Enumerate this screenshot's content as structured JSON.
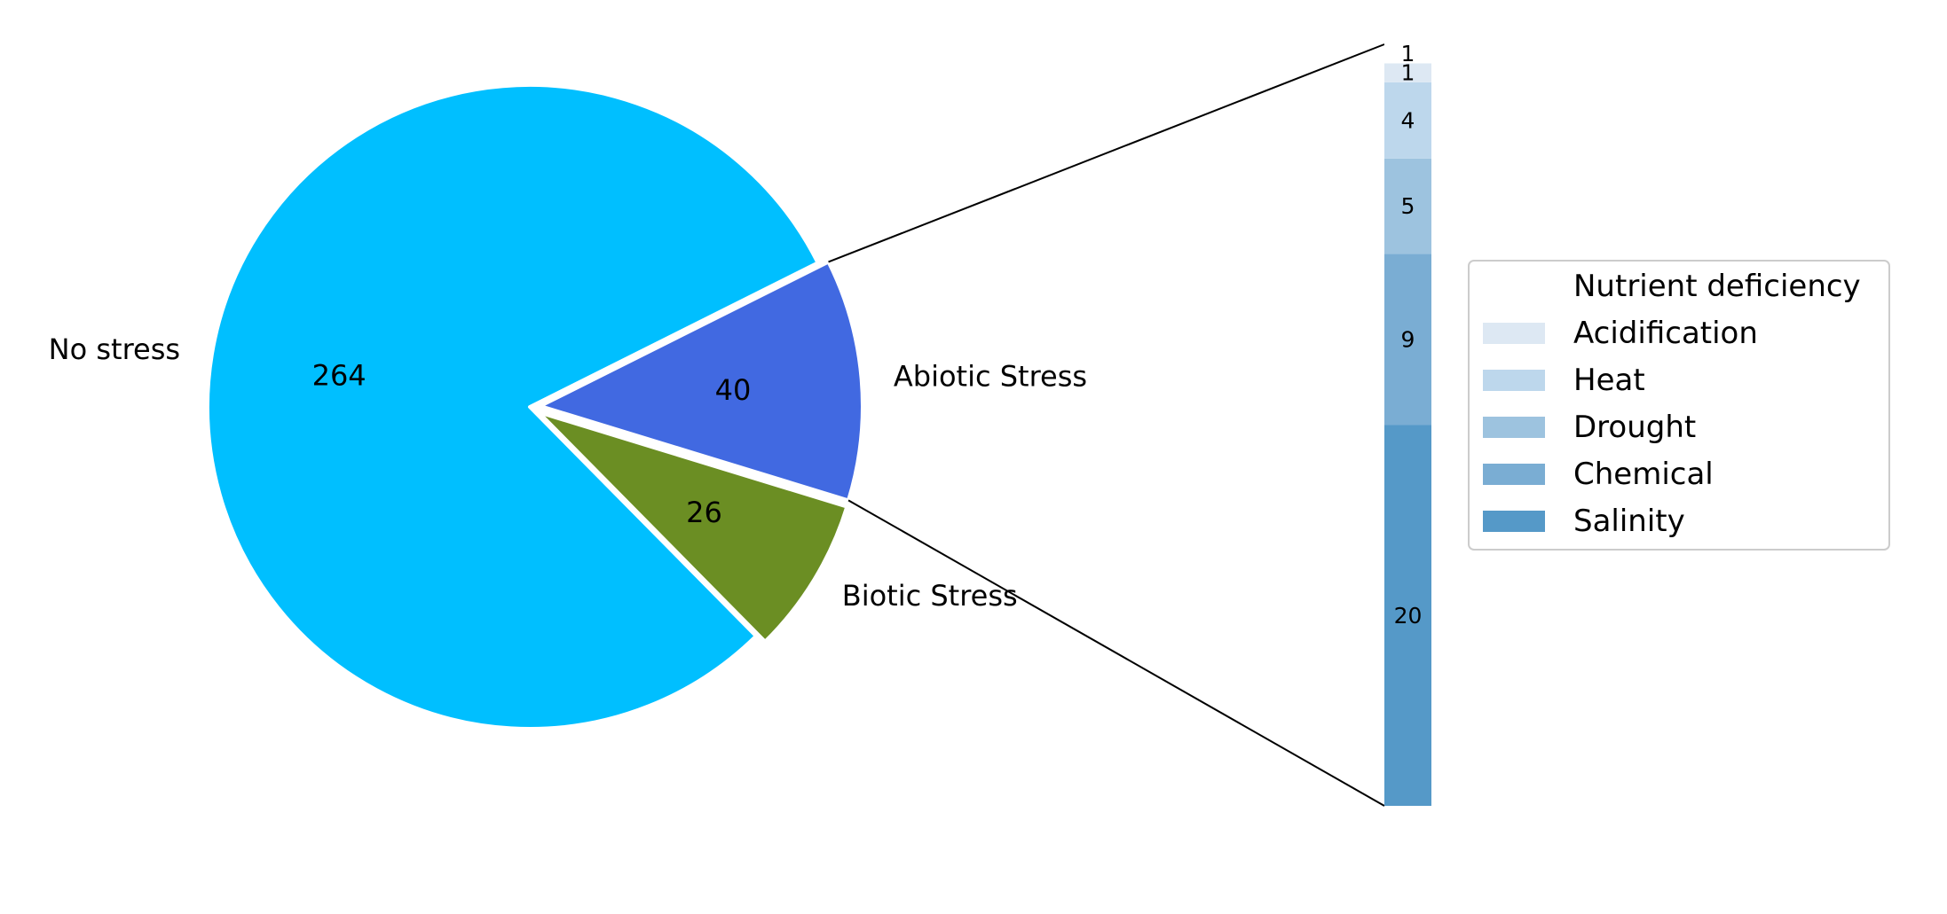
{
  "chart_data": {
    "type": "pie",
    "pie": {
      "slices": [
        {
          "label": "No stress",
          "value": 264,
          "value_label": "264",
          "color": "#00BFFF",
          "exploded": false
        },
        {
          "label": "Biotic Stress",
          "value": 26,
          "value_label": "26",
          "color": "#6B8E23",
          "exploded": true
        },
        {
          "label": "Abiotic Stress",
          "value": 40,
          "value_label": "40",
          "color": "#4169E1",
          "exploded": true
        }
      ],
      "start_angle_deg": 26.6
    },
    "breakdown": {
      "type": "bar",
      "stacked": true,
      "of": "Abiotic Stress",
      "segments": [
        {
          "label": "Salinity",
          "value": 20,
          "value_label": "20",
          "color": "#5599C8"
        },
        {
          "label": "Chemical",
          "value": 9,
          "value_label": "9",
          "color": "#7AADD3"
        },
        {
          "label": "Drought",
          "value": 5,
          "value_label": "5",
          "color": "#9DC3DF"
        },
        {
          "label": "Heat",
          "value": 4,
          "value_label": "4",
          "color": "#BDD7EC"
        },
        {
          "label": "Acidification",
          "value": 1,
          "value_label": "1",
          "color": "#DDE8F3"
        },
        {
          "label": "Nutrient deficiency",
          "value": 1,
          "value_label": "1",
          "color": "#FFFFFF"
        }
      ]
    },
    "legend": {
      "placement": "right",
      "entries": [
        "Nutrient deficiency",
        "Acidification",
        "Heat",
        "Drought",
        "Chemical",
        "Salinity"
      ]
    }
  }
}
